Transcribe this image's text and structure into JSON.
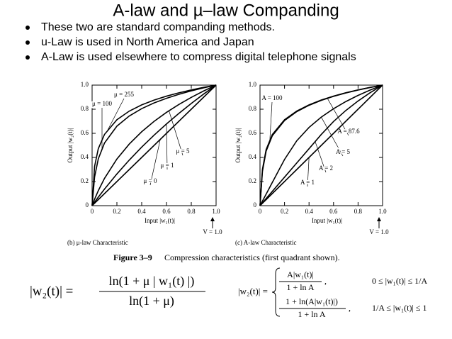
{
  "title": "A-law and µ–law Companding",
  "bullets": [
    "These two are standard companding methods.",
    "u-Law is used in North America and Japan",
    "A-Law is used elsewhere to compress digital telephone signals"
  ],
  "chart_data": [
    {
      "type": "line",
      "x_label": "Input |w₁(t)|",
      "y_label": "Output |w₂(t)|",
      "annotation": "V = 1.0",
      "caption": "(b) μ-law Characteristic",
      "x": [
        0,
        0.02,
        0.05,
        0.1,
        0.2,
        0.3,
        0.4,
        0.5,
        0.6,
        0.7,
        0.8,
        0.9,
        1
      ],
      "xlim": [
        0,
        1
      ],
      "ylim": [
        0,
        1
      ],
      "xticks": [
        0,
        0.2,
        0.4,
        0.6,
        0.8,
        {
          "value": 1,
          "label": "1.0"
        }
      ],
      "yticks": [
        0,
        0.2,
        0.4,
        0.6,
        0.8,
        {
          "value": 1,
          "label": "1.0"
        }
      ],
      "series": [
        {
          "name": "μ = 255",
          "color": "#000000",
          "values": [
            0,
            0.3261,
            0.4727,
            0.591,
            0.7126,
            0.7845,
            0.8358,
            0.8757,
            0.9084,
            0.936,
            0.9599,
            0.9811,
            1
          ]
        },
        {
          "name": "μ = 100",
          "color": "#000000",
          "values": [
            0,
            0.238,
            0.3882,
            0.5196,
            0.6597,
            0.7441,
            0.8047,
            0.852,
            0.8907,
            0.9236,
            0.9522,
            0.9774,
            1
          ]
        },
        {
          "name": "μ = 5",
          "color": "#000000",
          "values": [
            0,
            0.0532,
            0.1245,
            0.2263,
            0.3869,
            0.5114,
            0.6131,
            0.6992,
            0.7737,
            0.8394,
            0.8982,
            0.9514,
            1
          ]
        },
        {
          "name": "μ = 1",
          "color": "#000000",
          "values": [
            0,
            0.0286,
            0.0704,
            0.1375,
            0.263,
            0.3785,
            0.4854,
            0.585,
            0.6781,
            0.7655,
            0.848,
            0.926,
            1
          ]
        },
        {
          "name": "μ = 0",
          "color": "#000000",
          "values": [
            0,
            0.02,
            0.05,
            0.1,
            0.2,
            0.3,
            0.4,
            0.5,
            0.6,
            0.7,
            0.8,
            0.9,
            1
          ]
        }
      ]
    },
    {
      "type": "line",
      "x_label": "Input |w₁(t)|",
      "y_label": "Output |w₂(t)|",
      "annotation": "V = 1.0",
      "caption": "(c) A-law Characteristic",
      "x": [
        0,
        0.02,
        0.05,
        0.1,
        0.2,
        0.3,
        0.4,
        0.5,
        0.6,
        0.7,
        0.8,
        0.9,
        1
      ],
      "xlim": [
        0,
        1
      ],
      "ylim": [
        0,
        1
      ],
      "xticks": [
        0,
        0.2,
        0.4,
        0.6,
        0.8,
        {
          "value": 1,
          "label": "1.0"
        }
      ],
      "yticks": [
        0,
        0.2,
        0.4,
        0.6,
        0.8,
        {
          "value": 1,
          "label": "1.0"
        }
      ],
      "series": [
        {
          "name": "A = 100",
          "color": "#000000",
          "values": [
            0,
            0.3021,
            0.4655,
            0.5892,
            0.7129,
            0.7852,
            0.8365,
            0.8763,
            0.9088,
            0.9364,
            0.9602,
            0.9812,
            1
          ]
        },
        {
          "name": "A = 87.6",
          "color": "#000000",
          "values": [
            0,
            0.2852,
            0.4526,
            0.5793,
            0.7059,
            0.78,
            0.8326,
            0.8733,
            0.9067,
            0.9348,
            0.9592,
            0.9807,
            1
          ]
        },
        {
          "name": "A = 5",
          "color": "#000000",
          "values": [
            0,
            0.0383,
            0.0958,
            0.1916,
            0.3832,
            0.5386,
            0.6489,
            0.7344,
            0.8042,
            0.8633,
            0.9145,
            0.9596,
            1
          ]
        },
        {
          "name": "A = 2",
          "color": "#000000",
          "values": [
            0,
            0.0236,
            0.0591,
            0.1181,
            0.2363,
            0.3544,
            0.4725,
            0.5906,
            0.6983,
            0.7893,
            0.8682,
            0.9378,
            1
          ]
        },
        {
          "name": "A = 1",
          "color": "#000000",
          "values": [
            0,
            0.02,
            0.05,
            0.1,
            0.2,
            0.3,
            0.4,
            0.5,
            0.6,
            0.7,
            0.8,
            0.9,
            1
          ]
        }
      ]
    }
  ],
  "figure_caption": {
    "label": "Figure 3–9",
    "text": "Compression characteristics (first quadrant shown)."
  },
  "formulas": {
    "mu_law": {
      "lhs": "|w₂(t)| =",
      "numerator": "ln(1 + μ | w₁(t) |)",
      "denominator": "ln(1 + μ)"
    },
    "a_law": {
      "lhs": "|w₂(t)| =",
      "cases": [
        {
          "numerator": "A|w₁(t)|",
          "denominator": "1 + ln A",
          "separator": ",",
          "condition": "0 ≤ |w₁(t)| ≤ 1/A"
        },
        {
          "numerator": "1 + ln(A|w₁(t)|)",
          "denominator": "1 + ln A",
          "separator": ",",
          "condition": "1/A ≤ |w₁(t)| ≤ 1"
        }
      ]
    }
  }
}
